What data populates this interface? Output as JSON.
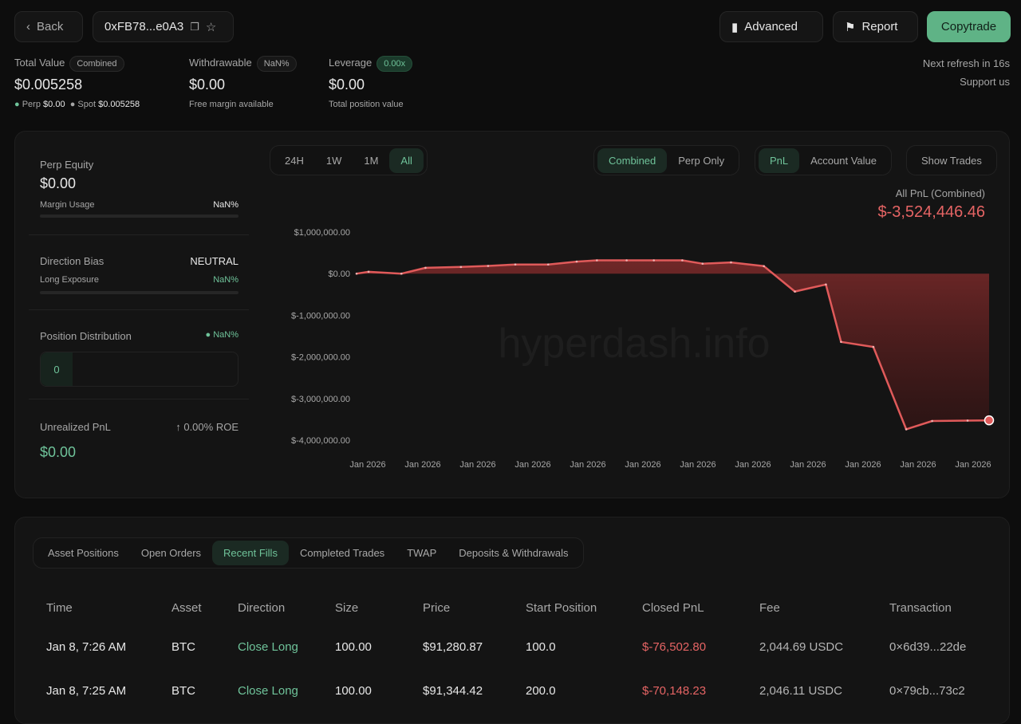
{
  "header": {
    "back_label": "Back",
    "address": "0xFB78...e0A3",
    "advanced_label": "Advanced",
    "report_label": "Report",
    "copytrade_label": "Copytrade",
    "refresh_text": "Next refresh in 16s",
    "support_label": "Support us"
  },
  "stats": {
    "total": {
      "label": "Total Value",
      "badge": "Combined",
      "value": "$0.005258",
      "perp_label": "Perp",
      "perp_value": "$0.00",
      "spot_label": "Spot",
      "spot_value": "$0.005258"
    },
    "withdrawable": {
      "label": "Withdrawable",
      "badge": "NaN%",
      "value": "$0.00",
      "sub": "Free margin available"
    },
    "leverage": {
      "label": "Leverage",
      "badge": "0.00x",
      "value": "$0.00",
      "sub": "Total position value"
    }
  },
  "left": {
    "perp_equity_label": "Perp Equity",
    "perp_equity": "$0.00",
    "margin_usage_label": "Margin Usage",
    "margin_usage": "NaN%",
    "direction_bias_label": "Direction Bias",
    "direction_bias": "NEUTRAL",
    "long_exposure_label": "Long Exposure",
    "long_exposure": "NaN%",
    "position_distribution_label": "Position Distribution",
    "position_distribution": "NaN%",
    "position_count": "0",
    "unrealized_label": "Unrealized PnL",
    "roe": "0.00% ROE",
    "unrealized": "$0.00"
  },
  "chart_controls": {
    "ranges": [
      "24H",
      "1W",
      "1M",
      "All"
    ],
    "active_range": "All",
    "modes": [
      "Combined",
      "Perp Only"
    ],
    "active_mode": "Combined",
    "metrics": [
      "PnL",
      "Account Value"
    ],
    "active_metric": "PnL",
    "show_trades_label": "Show Trades"
  },
  "chart_data": {
    "type": "area",
    "title": "All PnL (Combined)",
    "current_value": "$-3,524,446.46",
    "watermark": "hyperdash.info",
    "ylim": [
      -4000000,
      1000000
    ],
    "y_ticks": [
      "$1,000,000.00",
      "$0.00",
      "$-1,000,000.00",
      "$-2,000,000.00",
      "$-3,000,000.00",
      "$-4,000,000.00"
    ],
    "x_ticks": [
      "Jan 2026",
      "Jan 2026",
      "Jan 2026",
      "Jan 2026",
      "Jan 2026",
      "Jan 2026",
      "Jan 2026",
      "Jan 2026",
      "Jan 2026",
      "Jan 2026",
      "Jan 2026",
      "Jan 2026"
    ],
    "values": [
      0,
      45000,
      0,
      140000,
      160000,
      185000,
      220000,
      220000,
      290000,
      320000,
      320000,
      320000,
      320000,
      240000,
      270000,
      180000,
      -430000,
      -260000,
      -1640000,
      -1760000,
      -3740000,
      -3540000,
      -3530000,
      -3524446.46
    ],
    "color": "#e05a5a",
    "grid": false
  },
  "bottom": {
    "tabs": [
      "Asset Positions",
      "Open Orders",
      "Recent Fills",
      "Completed Trades",
      "TWAP",
      "Deposits & Withdrawals"
    ],
    "active_tab": "Recent Fills",
    "columns": [
      "Time",
      "Asset",
      "Direction",
      "Size",
      "Price",
      "Start Position",
      "Closed PnL",
      "Fee",
      "Transaction"
    ],
    "rows": [
      [
        "Jan 8, 7:26 AM",
        "BTC",
        "Close Long",
        "100.00",
        "$91,280.87",
        "100.0",
        "$-76,502.80",
        "2,044.69 USDC",
        "0×6d39...22de"
      ],
      [
        "Jan 8, 7:25 AM",
        "BTC",
        "Close Long",
        "100.00",
        "$91,344.42",
        "200.0",
        "$-70,148.23",
        "2,046.11 USDC",
        "0×79cb...73c2"
      ]
    ]
  },
  "colors": {
    "accent": "#5fb386",
    "negative": "#e56464"
  }
}
